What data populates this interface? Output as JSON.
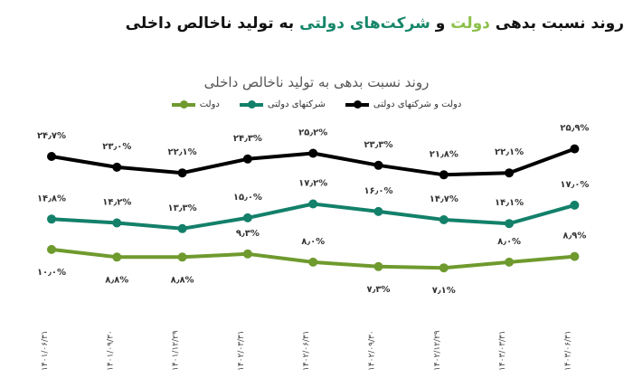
{
  "header": {
    "title_part1": "روند نسبت بدهی ",
    "title_green": "دولت",
    "title_part2": " و ",
    "title_teal": "شرکت‌های دولتی",
    "title_part3": " به تولید ناخالص داخلی"
  },
  "chart_data": {
    "type": "line",
    "title": "روند نسبت بدهی به تولید ناخالص داخلی",
    "xlabel": "",
    "ylabel": "",
    "legend_position": "top",
    "grid": false,
    "categories": [
      "۱۴۰۱/۰۶/۳۱",
      "۱۴۰۱/۰۹/۳۰",
      "۱۴۰۱/۱۲/۲۹",
      "۱۴۰۲/۰۳/۳۱",
      "۱۴۰۲/۰۶/۳۱",
      "۱۴۰۲/۰۹/۳۰",
      "۱۴۰۲/۱۲/۲۹",
      "۱۴۰۳/۰۳/۳۱",
      "۱۴۰۳/۰۶/۳۱"
    ],
    "series": [
      {
        "name": "دولت و شرکتهای دولتی",
        "color": "#000000",
        "values": [
          24.7,
          23.0,
          22.1,
          24.3,
          25.2,
          23.3,
          21.8,
          22.1,
          25.9
        ],
        "labels": [
          "۲۴٫۷%",
          "۲۳٫۰%",
          "۲۲٫۱%",
          "۲۴٫۳%",
          "۲۵٫۲%",
          "۲۳٫۳%",
          "۲۱٫۸%",
          "۲۲٫۱%",
          "۲۵٫۹%"
        ]
      },
      {
        "name": "شرکتهای دولتی",
        "color": "#13806a",
        "values": [
          14.8,
          14.2,
          13.3,
          15.0,
          17.2,
          16.0,
          14.7,
          14.1,
          17.0
        ],
        "labels": [
          "۱۴٫۸%",
          "۱۴٫۲%",
          "۱۳٫۳%",
          "۱۵٫۰%",
          "۱۷٫۲%",
          "۱۶٫۰%",
          "۱۴٫۷%",
          "۱۴٫۱%",
          "۱۷٫۰%"
        ]
      },
      {
        "name": "دولت",
        "color": "#6f9a2e",
        "values": [
          10.0,
          8.8,
          8.8,
          9.3,
          8.0,
          7.3,
          7.1,
          8.0,
          8.9
        ],
        "labels": [
          "۱۰٫۰%",
          "۸٫۸%",
          "۸٫۸%",
          "۹٫۳%",
          "۸٫۰%",
          "۷٫۳%",
          "۷٫۱%",
          "۸٫۰%",
          "۸٫۹%"
        ]
      }
    ]
  }
}
